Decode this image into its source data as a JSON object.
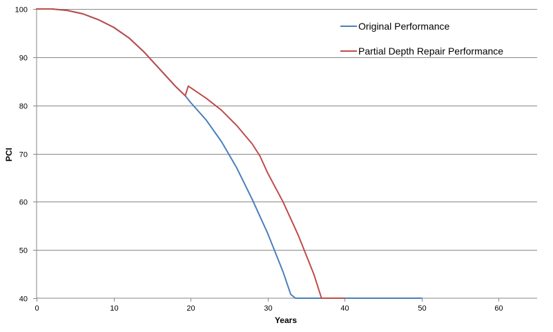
{
  "chart_data": {
    "type": "line",
    "title": "",
    "xlabel": "Years",
    "ylabel": "PCI",
    "xlim": [
      0,
      65
    ],
    "ylim": [
      40,
      100
    ],
    "x_ticks": [
      0,
      10,
      20,
      30,
      40,
      50,
      60
    ],
    "y_ticks": [
      40,
      50,
      60,
      70,
      80,
      90,
      100
    ],
    "grid": "horizontal",
    "legend_position": "top-right",
    "series": [
      {
        "name": "Original Performance",
        "color": "#4a7ebb",
        "points": [
          [
            0,
            100
          ],
          [
            2,
            100
          ],
          [
            4,
            99.7
          ],
          [
            6,
            99
          ],
          [
            8,
            97.8
          ],
          [
            10,
            96.2
          ],
          [
            12,
            94
          ],
          [
            14,
            91
          ],
          [
            16,
            87.5
          ],
          [
            18,
            84
          ],
          [
            19.3,
            82
          ],
          [
            20,
            80.6
          ],
          [
            22,
            77
          ],
          [
            24,
            72.5
          ],
          [
            26,
            67
          ],
          [
            28,
            60.5
          ],
          [
            30,
            53.5
          ],
          [
            32,
            45.5
          ],
          [
            33,
            40.8
          ],
          [
            33.6,
            40
          ],
          [
            40,
            40
          ],
          [
            50,
            40
          ]
        ]
      },
      {
        "name": "Partial Depth Repair Performance",
        "color": "#be4b48",
        "points": [
          [
            0,
            100
          ],
          [
            2,
            100
          ],
          [
            4,
            99.7
          ],
          [
            6,
            99
          ],
          [
            8,
            97.8
          ],
          [
            10,
            96.2
          ],
          [
            12,
            94
          ],
          [
            14,
            91
          ],
          [
            16,
            87.5
          ],
          [
            18,
            84
          ],
          [
            19.3,
            82
          ],
          [
            19.7,
            84
          ],
          [
            22,
            81.5
          ],
          [
            24,
            79
          ],
          [
            26,
            75.8
          ],
          [
            28,
            72
          ],
          [
            29,
            69.5
          ],
          [
            30,
            66
          ],
          [
            32,
            60
          ],
          [
            34,
            53
          ],
          [
            36,
            45
          ],
          [
            37,
            40
          ],
          [
            40,
            40
          ]
        ]
      }
    ]
  }
}
